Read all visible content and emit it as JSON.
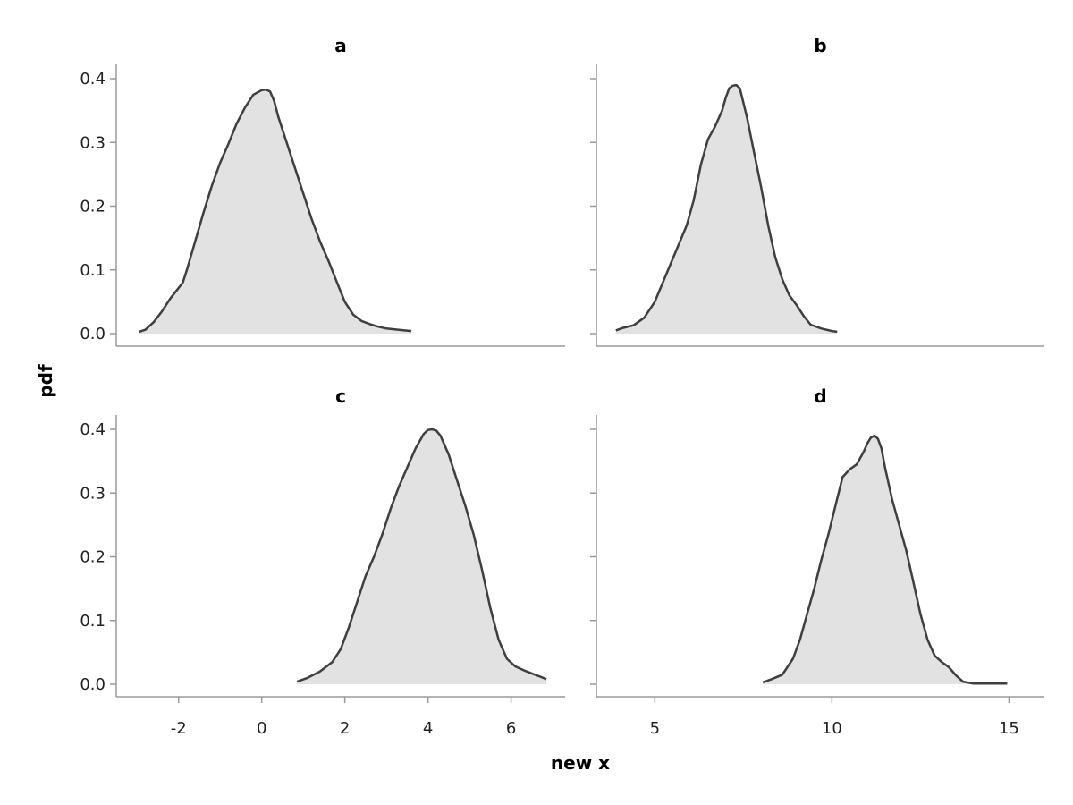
{
  "figure": {
    "xlabel": "new x",
    "ylabel": "pdf"
  },
  "chart_data": [
    {
      "type": "area",
      "title": "a",
      "xlim": [
        -3.5,
        7.3
      ],
      "ylim": [
        0,
        0.42
      ],
      "x_ticks": [],
      "y_ticks": [
        0.0,
        0.1,
        0.2,
        0.3,
        0.4
      ],
      "y_tick_labels": [
        "0.0",
        "0.1",
        "0.2",
        "0.3",
        "0.4"
      ],
      "x": [
        -2.95,
        -2.8,
        -2.6,
        -2.4,
        -2.2,
        -1.9,
        -1.8,
        -1.6,
        -1.4,
        -1.2,
        -1.0,
        -0.8,
        -0.6,
        -0.4,
        -0.2,
        0.0,
        0.1,
        0.2,
        0.3,
        0.4,
        0.6,
        0.8,
        1.0,
        1.2,
        1.4,
        1.6,
        1.8,
        2.0,
        2.2,
        2.4,
        2.6,
        2.8,
        3.0,
        3.3,
        3.6
      ],
      "y": [
        0.003,
        0.006,
        0.018,
        0.035,
        0.055,
        0.08,
        0.1,
        0.145,
        0.19,
        0.232,
        0.268,
        0.298,
        0.33,
        0.355,
        0.375,
        0.382,
        0.383,
        0.38,
        0.365,
        0.34,
        0.3,
        0.26,
        0.22,
        0.18,
        0.145,
        0.115,
        0.082,
        0.05,
        0.03,
        0.02,
        0.015,
        0.011,
        0.008,
        0.006,
        0.004
      ]
    },
    {
      "type": "area",
      "title": "b",
      "xlim": [
        3.35,
        16.0
      ],
      "ylim": [
        0,
        0.42
      ],
      "x_ticks": [],
      "y_ticks": [
        0.0,
        0.1,
        0.2,
        0.3,
        0.4
      ],
      "y_tick_labels": [],
      "x": [
        3.9,
        4.1,
        4.4,
        4.7,
        5.0,
        5.3,
        5.6,
        5.9,
        6.1,
        6.3,
        6.5,
        6.7,
        6.9,
        7.0,
        7.1,
        7.2,
        7.3,
        7.4,
        7.6,
        7.8,
        8.0,
        8.2,
        8.4,
        8.6,
        8.8,
        9.0,
        9.2,
        9.4,
        9.7,
        10.0,
        10.15
      ],
      "y": [
        0.005,
        0.009,
        0.013,
        0.025,
        0.05,
        0.09,
        0.13,
        0.17,
        0.21,
        0.265,
        0.305,
        0.325,
        0.35,
        0.37,
        0.385,
        0.389,
        0.39,
        0.385,
        0.34,
        0.285,
        0.23,
        0.17,
        0.12,
        0.085,
        0.06,
        0.045,
        0.028,
        0.014,
        0.008,
        0.004,
        0.003
      ]
    },
    {
      "type": "area",
      "title": "c",
      "xlim": [
        -3.5,
        7.3
      ],
      "ylim": [
        0,
        0.42
      ],
      "x_ticks": [
        -2,
        0,
        2,
        4,
        6
      ],
      "x_tick_labels": [
        "-2",
        "0",
        "2",
        "4",
        "6"
      ],
      "y_ticks": [
        0.0,
        0.1,
        0.2,
        0.3,
        0.4
      ],
      "y_tick_labels": [
        "0.0",
        "0.1",
        "0.2",
        "0.3",
        "0.4"
      ],
      "x": [
        0.85,
        1.1,
        1.4,
        1.7,
        1.9,
        2.1,
        2.3,
        2.5,
        2.7,
        2.9,
        3.1,
        3.3,
        3.5,
        3.7,
        3.9,
        4.0,
        4.1,
        4.2,
        4.3,
        4.5,
        4.7,
        4.9,
        5.1,
        5.3,
        5.5,
        5.7,
        5.9,
        6.1,
        6.3,
        6.5,
        6.7,
        6.85
      ],
      "y": [
        0.004,
        0.01,
        0.02,
        0.035,
        0.055,
        0.09,
        0.13,
        0.17,
        0.2,
        0.235,
        0.275,
        0.31,
        0.34,
        0.37,
        0.393,
        0.399,
        0.4,
        0.398,
        0.39,
        0.36,
        0.32,
        0.28,
        0.235,
        0.18,
        0.12,
        0.07,
        0.04,
        0.028,
        0.022,
        0.017,
        0.012,
        0.008
      ]
    },
    {
      "type": "area",
      "title": "d",
      "xlim": [
        3.35,
        16.0
      ],
      "ylim": [
        0,
        0.42
      ],
      "x_ticks": [
        5,
        10,
        15
      ],
      "x_tick_labels": [
        "5",
        "10",
        "15"
      ],
      "y_ticks": [
        0.0,
        0.1,
        0.2,
        0.3,
        0.4
      ],
      "y_tick_labels": [],
      "x": [
        8.05,
        8.3,
        8.6,
        8.9,
        9.1,
        9.3,
        9.5,
        9.7,
        9.9,
        10.1,
        10.3,
        10.5,
        10.7,
        10.9,
        11.0,
        11.1,
        11.2,
        11.3,
        11.4,
        11.5,
        11.7,
        11.9,
        12.1,
        12.3,
        12.5,
        12.7,
        12.9,
        13.1,
        13.3,
        13.5,
        13.7,
        14.0,
        14.5,
        14.95
      ],
      "y": [
        0.003,
        0.008,
        0.015,
        0.04,
        0.07,
        0.11,
        0.15,
        0.195,
        0.235,
        0.28,
        0.325,
        0.337,
        0.345,
        0.365,
        0.378,
        0.387,
        0.39,
        0.385,
        0.37,
        0.34,
        0.29,
        0.25,
        0.21,
        0.16,
        0.11,
        0.07,
        0.045,
        0.035,
        0.027,
        0.014,
        0.004,
        0.001,
        0.001,
        0.001
      ]
    }
  ]
}
